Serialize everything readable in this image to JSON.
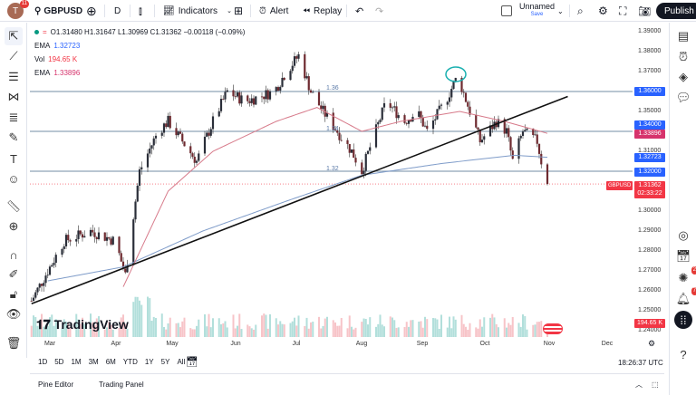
{
  "topbar": {
    "avatar_letter": "T",
    "avatar_badge": "11",
    "symbol": "GBPUSD",
    "interval": "D",
    "indicators": "Indicators",
    "alert": "Alert",
    "replay": "Replay",
    "layout_name": "Unnamed",
    "layout_save": "Save",
    "publish": "Publish"
  },
  "legend": {
    "ohlc": "O1.31480 H1.31647 L1.30969 C1.31362 −0.00118 (−0.09%)",
    "ema1_label": "EMA",
    "ema1_value": "1.32723",
    "vol_label": "Vol",
    "vol_value": "194.65 K",
    "ema2_label": "EMA",
    "ema2_value": "1.33896"
  },
  "price_axis": {
    "ticks": [
      "1.39000",
      "1.38000",
      "1.37000",
      "1.35000",
      "1.31000",
      "1.30000",
      "1.29000",
      "1.28000",
      "1.27000",
      "1.26000",
      "1.25000",
      "1.24000"
    ],
    "labels": [
      {
        "text": "1.36000",
        "color": "#2962ff"
      },
      {
        "text": "1.34000",
        "color": "#2962ff"
      },
      {
        "text": "1.33896",
        "color": "#d6336c"
      },
      {
        "text": "1.32723",
        "color": "#2962ff"
      },
      {
        "text": "1.32000",
        "color": "#2962ff"
      },
      {
        "text": "1.31362",
        "color": "#f23645"
      },
      {
        "text": "02:33:22",
        "color": "#f23645"
      },
      {
        "text": "194.65 K",
        "color": "#f23645"
      }
    ],
    "symbol_tag": "GBPUSD"
  },
  "time_axis": [
    "Mar",
    "Apr",
    "May",
    "Jun",
    "Jul",
    "Aug",
    "Sep",
    "Oct",
    "Nov",
    "Dec"
  ],
  "chart_annotations": {
    "level_136": "1.36",
    "level_134": "1.34",
    "level_132": "1.32"
  },
  "watermark": "TradingView",
  "range_buttons": [
    "1D",
    "5D",
    "1M",
    "3M",
    "6M",
    "YTD",
    "1Y",
    "5Y",
    "All"
  ],
  "clock": "18:26:37 UTC",
  "bottom_tabs": [
    "Pine Editor",
    "Trading Panel"
  ],
  "right_badges": {
    "ideas": "2",
    "notifications": "7"
  },
  "chart_data": {
    "type": "candlestick",
    "symbol": "GBPUSD",
    "ylim": [
      1.24,
      1.39
    ],
    "close_path": [
      [
        "Feb 20",
        1.255
      ],
      [
        "Mar 8",
        1.285
      ],
      [
        "Mar 21",
        1.29
      ],
      [
        "Apr 2",
        1.285
      ],
      [
        "Apr 7",
        1.268
      ],
      [
        "Apr 14",
        1.32
      ],
      [
        "Apr 23",
        1.34
      ],
      [
        "Apr 28",
        1.345
      ],
      [
        "May 12",
        1.325
      ],
      [
        "May 20",
        1.345
      ],
      [
        "May 27",
        1.36
      ],
      [
        "Jun 5",
        1.355
      ],
      [
        "Jun 19",
        1.36
      ],
      [
        "Jun 25",
        1.37
      ],
      [
        "Jul 1",
        1.378
      ],
      [
        "Jul 7",
        1.36
      ],
      [
        "Jul 13",
        1.35
      ],
      [
        "Jul 20",
        1.34
      ],
      [
        "Jul 27",
        1.33
      ],
      [
        "Aug 1",
        1.32
      ],
      [
        "Aug 6",
        1.335
      ],
      [
        "Aug 13",
        1.355
      ],
      [
        "Aug 22",
        1.345
      ],
      [
        "Aug 28",
        1.35
      ],
      [
        "Sep 2",
        1.34
      ],
      [
        "Sep 11",
        1.355
      ],
      [
        "Sep 17",
        1.368
      ],
      [
        "Sep 23",
        1.35
      ],
      [
        "Sep 28",
        1.335
      ],
      [
        "Oct 6",
        1.345
      ],
      [
        "Oct 11",
        1.34
      ],
      [
        "Oct 14",
        1.325
      ],
      [
        "Oct 19",
        1.34
      ],
      [
        "Oct 26",
        1.335
      ],
      [
        "Oct 29",
        1.32
      ],
      [
        "Oct 31",
        1.3136
      ]
    ],
    "ema_fast": [
      [
        "Apr 6",
        1.262
      ],
      [
        "Apr 28",
        1.31
      ],
      [
        "May 20",
        1.33
      ],
      [
        "Jun 20",
        1.345
      ],
      [
        "Jul 10",
        1.352
      ],
      [
        "Aug 1",
        1.34
      ],
      [
        "Aug 20",
        1.345
      ],
      [
        "Sep 18",
        1.35
      ],
      [
        "Oct 10",
        1.345
      ],
      [
        "Oct 31",
        1.339
      ]
    ],
    "ema_slow": [
      [
        "Feb 28",
        1.265
      ],
      [
        "Apr 6",
        1.272
      ],
      [
        "May 15",
        1.29
      ],
      [
        "Jun 25",
        1.305
      ],
      [
        "Aug 1",
        1.318
      ],
      [
        "Sep 10",
        1.324
      ],
      [
        "Oct 15",
        1.328
      ],
      [
        "Oct 31",
        1.327
      ]
    ],
    "horizontal_levels": [
      1.36,
      1.34,
      1.32
    ],
    "trendline": [
      [
        "Feb 20",
        1.2535
      ],
      [
        "Nov 10",
        1.3575
      ]
    ],
    "colors": {
      "up": "#089981",
      "down": "#f23645",
      "ema_fast": "#d77a8a",
      "ema_slow": "#7f9cc9"
    }
  }
}
